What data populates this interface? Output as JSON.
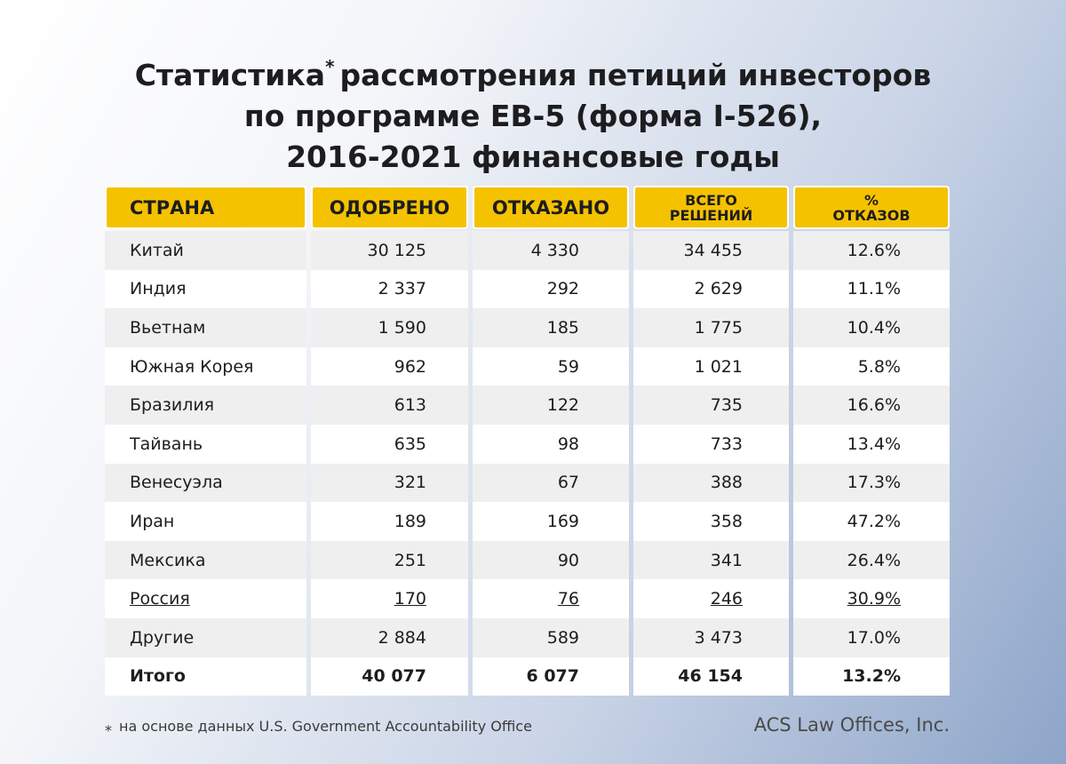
{
  "title": {
    "word": "Статистика",
    "mark": "*",
    "rest": "рассмотрения петиций инвесторов",
    "line2": "по программе EB-5 (форма I-526),",
    "line3": "2016-2021 финансовые годы"
  },
  "table": {
    "header": [
      [
        "СТРАНА"
      ],
      [
        "ОДОБРЕНО"
      ],
      [
        "ОТКАЗАНО"
      ],
      [
        "ВСЕГО",
        "РЕШЕНИЙ"
      ],
      [
        "%",
        "ОТКАЗОВ"
      ]
    ],
    "rows": [
      [
        "Китай",
        "30 125",
        "4 330",
        "34 455",
        "12.6%"
      ],
      [
        "Индия",
        "2 337",
        "292",
        "2 629",
        "11.1%"
      ],
      [
        "Вьетнам",
        "1 590",
        "185",
        "1 775",
        "10.4%"
      ],
      [
        "Южная Корея",
        "962",
        "59",
        "1 021",
        "5.8%"
      ],
      [
        "Бразилия",
        "613",
        "122",
        "735",
        "16.6%"
      ],
      [
        "Тайвань",
        "635",
        "98",
        "733",
        "13.4%"
      ],
      [
        "Венесуэла",
        "321",
        "67",
        "388",
        "17.3%"
      ],
      [
        "Иран",
        "189",
        "169",
        "358",
        "47.2%"
      ],
      [
        "Мексика",
        "251",
        "90",
        "341",
        "26.4%"
      ],
      [
        "Россия",
        "170",
        "76",
        "246",
        "30.9%"
      ],
      [
        "Другие",
        "2 884",
        "589",
        "3 473",
        "17.0%"
      ],
      [
        "Итого",
        "40 077",
        "6 077",
        "46 154",
        "13.2%"
      ]
    ]
  },
  "footnote": {
    "mark": "⁎",
    "text": "на основе данных U.S. Government Accountability Office"
  },
  "brand": "ACS Law Offices, Inc."
}
